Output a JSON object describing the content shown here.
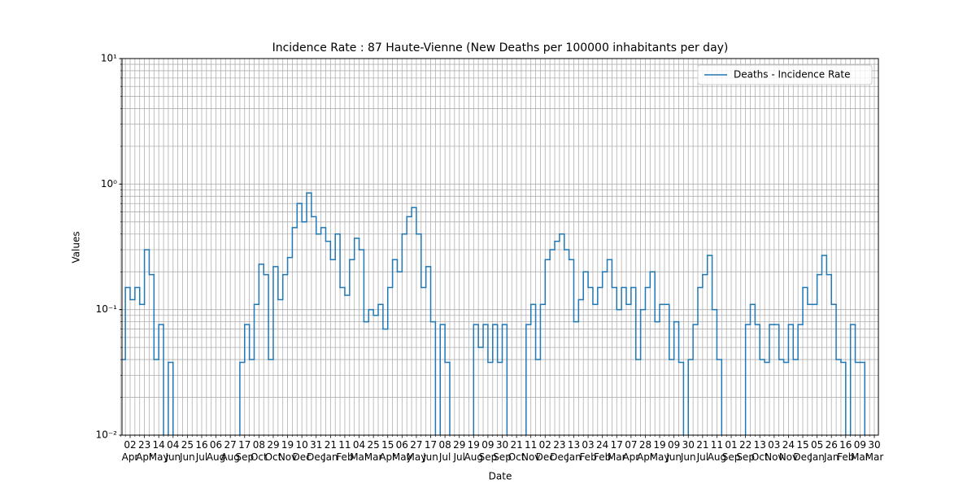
{
  "chart_data": {
    "type": "step",
    "title": "Incidence Rate : 87 Haute-Vienne (New Deaths per 100000 inhabitants per day)",
    "x_label": "Date",
    "y_label": "Values",
    "log_y": true,
    "grid": true,
    "legend": "upper right",
    "ylim": [
      0.01,
      10
    ],
    "yticks": [
      {
        "value": 0.01,
        "label": "10⁻²"
      },
      {
        "value": 0.1,
        "label": "10⁻¹"
      },
      {
        "value": 1,
        "label": "10⁰"
      },
      {
        "value": 10,
        "label": "10¹"
      }
    ],
    "yminorticks": [
      0.02,
      0.03,
      0.04,
      0.05,
      0.06,
      0.07,
      0.08,
      0.09,
      0.2,
      0.3,
      0.4,
      0.5,
      0.6,
      0.7,
      0.8,
      0.9,
      2,
      3,
      4,
      5,
      6,
      7,
      8,
      9
    ],
    "categories": [
      null,
      null,
      "02\nApr",
      null,
      null,
      "23\nApr",
      null,
      null,
      "14\nMay",
      null,
      null,
      "04\nJun",
      null,
      null,
      "25\nJun",
      null,
      null,
      "16\nJul",
      null,
      null,
      "06\nAug",
      null,
      null,
      "27\nAug",
      null,
      null,
      "17\nSep",
      null,
      null,
      "08\nOct",
      null,
      null,
      "29\nOct",
      null,
      null,
      "19\nNov",
      null,
      null,
      "10\nDec",
      null,
      null,
      "31\nDec",
      null,
      null,
      "21\nJan",
      null,
      null,
      "11\nFeb",
      null,
      null,
      "04\nMar",
      null,
      null,
      "25\nMar",
      null,
      null,
      "15\nApr",
      null,
      null,
      "06\nMay",
      null,
      null,
      "27\nMay",
      null,
      null,
      "17\nJun",
      null,
      null,
      "08\nJul",
      null,
      null,
      "29\nJul",
      null,
      null,
      "19\nAug",
      null,
      null,
      "09\nSep",
      null,
      null,
      "30\nSep",
      null,
      null,
      "21\nOct",
      null,
      null,
      "11\nNov",
      null,
      null,
      "02\nDec",
      null,
      null,
      "23\nDec",
      null,
      null,
      "13\nJan",
      null,
      null,
      "03\nFeb",
      null,
      null,
      "24\nFeb",
      null,
      null,
      "17\nMar",
      null,
      null,
      "07\nApr",
      null,
      null,
      "28\nApr",
      null,
      null,
      "19\nMay",
      null,
      null,
      "09\nJun",
      null,
      null,
      "30\nJun",
      null,
      null,
      "21\nJul",
      null,
      null,
      "11\nAug",
      null,
      null,
      "01\nSep",
      null,
      null,
      "22\nSep",
      null,
      null,
      "13\nOct",
      null,
      null,
      "03\nNov",
      null,
      null,
      "24\nNov",
      null,
      null,
      "15\nDec",
      null,
      null,
      "05\nJan",
      null,
      null,
      "26\nJan",
      null,
      null,
      "16\nFeb",
      null,
      null,
      "09\nMar",
      null,
      null,
      "30\nMar"
    ],
    "series": [
      {
        "name": "Deaths - Incidence Rate",
        "color": "#1f77b4",
        "values": [
          0.04,
          0.15,
          0.12,
          0.15,
          0.11,
          0.3,
          0.19,
          0.04,
          0.076,
          0,
          0.038,
          0,
          0,
          0,
          0,
          0,
          0,
          0,
          0,
          0,
          0,
          0,
          0,
          0,
          0,
          0.038,
          0.076,
          0.04,
          0.11,
          0.23,
          0.19,
          0.04,
          0.22,
          0.12,
          0.19,
          0.26,
          0.45,
          0.7,
          0.5,
          0.85,
          0.55,
          0.4,
          0.45,
          0.35,
          0.25,
          0.4,
          0.15,
          0.13,
          0.25,
          0.37,
          0.3,
          0.08,
          0.1,
          0.09,
          0.11,
          0.07,
          0.15,
          0.25,
          0.2,
          0.4,
          0.55,
          0.65,
          0.4,
          0.15,
          0.22,
          0.08,
          0,
          0.076,
          0.038,
          0,
          0,
          0,
          0,
          0,
          0.076,
          0.05,
          0.076,
          0.038,
          0.076,
          0.038,
          0.076,
          0,
          0,
          0,
          0,
          0.076,
          0.11,
          0.04,
          0.11,
          0.25,
          0.3,
          0.35,
          0.4,
          0.3,
          0.25,
          0.08,
          0.12,
          0.2,
          0.15,
          0.11,
          0.15,
          0.2,
          0.25,
          0.15,
          0.1,
          0.15,
          0.11,
          0.15,
          0.04,
          0.1,
          0.15,
          0.2,
          0.08,
          0.11,
          0.11,
          0.04,
          0.08,
          0.038,
          0,
          0.04,
          0.076,
          0.15,
          0.19,
          0.27,
          0.1,
          0.04,
          0,
          0,
          0,
          0,
          0,
          0.076,
          0.11,
          0.076,
          0.04,
          0.038,
          0.076,
          0.076,
          0.04,
          0.038,
          0.076,
          0.04,
          0.076,
          0.15,
          0.11,
          0.11,
          0.19,
          0.27,
          0.19,
          0.11,
          0.04,
          0.038,
          0,
          0.076,
          0.038,
          0.038,
          0,
          0,
          0
        ]
      }
    ]
  }
}
